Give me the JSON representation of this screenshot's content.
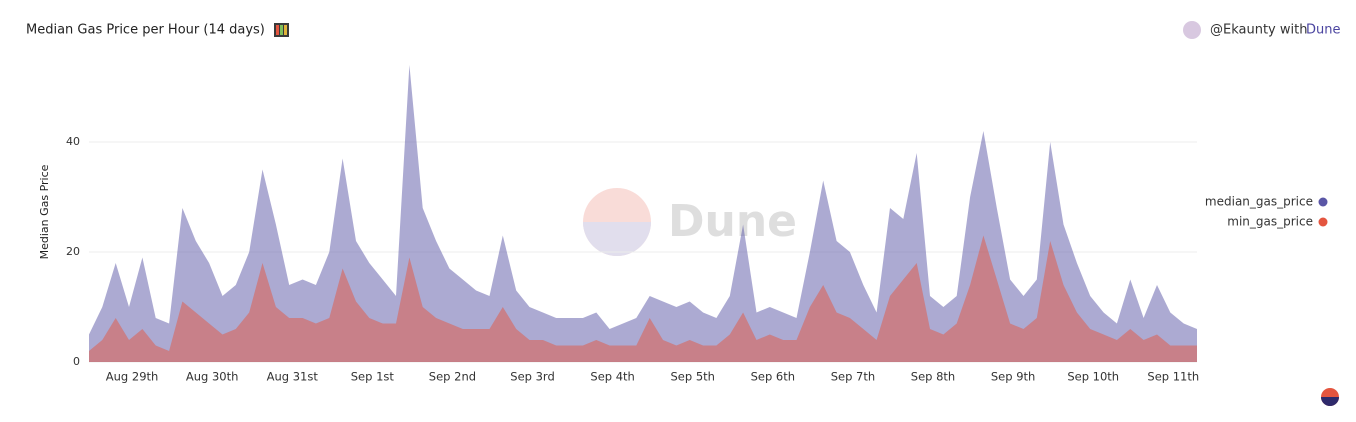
{
  "chart_data": {
    "type": "area",
    "title": "Median Gas Price per Hour (14 days)",
    "author": "@Ekaunty with",
    "brand": "Dune",
    "watermark": "Dune",
    "y_label": "Median Gas Price",
    "categories": [
      null,
      null,
      null,
      "Aug 29th",
      null,
      null,
      null,
      null,
      null,
      "Aug 30th",
      null,
      null,
      null,
      null,
      null,
      "Aug 31st",
      null,
      null,
      null,
      null,
      null,
      "Sep 1st",
      null,
      null,
      null,
      null,
      null,
      "Sep 2nd",
      null,
      null,
      null,
      null,
      null,
      "Sep 3rd",
      null,
      null,
      null,
      null,
      null,
      "Sep 4th",
      null,
      null,
      null,
      null,
      null,
      "Sep 5th",
      null,
      null,
      null,
      null,
      null,
      "Sep 6th",
      null,
      null,
      null,
      null,
      null,
      "Sep 7th",
      null,
      null,
      null,
      null,
      null,
      "Sep 8th",
      null,
      null,
      null,
      null,
      null,
      "Sep 9th",
      null,
      null,
      null,
      null,
      null,
      "Sep 10th",
      null,
      null,
      null,
      null,
      null,
      "Sep 11th",
      null,
      null
    ],
    "series": [
      {
        "name": "median_gas_price",
        "color": "#5a56a6",
        "values": [
          5,
          10,
          18,
          10,
          19,
          8,
          7,
          28,
          22,
          18,
          12,
          14,
          20,
          35,
          25,
          14,
          15,
          14,
          20,
          37,
          22,
          18,
          15,
          12,
          54,
          28,
          22,
          17,
          15,
          13,
          12,
          23,
          13,
          10,
          9,
          8,
          8,
          8,
          9,
          6,
          7,
          8,
          12,
          11,
          10,
          11,
          9,
          8,
          12,
          25,
          9,
          10,
          9,
          8,
          20,
          33,
          22,
          20,
          14,
          9,
          28,
          26,
          38,
          12,
          10,
          12,
          30,
          42,
          28,
          15,
          12,
          15,
          40,
          25,
          18,
          12,
          9,
          7,
          15,
          8,
          14,
          9,
          7,
          6
        ]
      },
      {
        "name": "min_gas_price",
        "color": "#e4553f",
        "values": [
          2,
          4,
          8,
          4,
          6,
          3,
          2,
          11,
          9,
          7,
          5,
          6,
          9,
          18,
          10,
          8,
          8,
          7,
          8,
          17,
          11,
          8,
          7,
          7,
          19,
          10,
          8,
          7,
          6,
          6,
          6,
          10,
          6,
          4,
          4,
          3,
          3,
          3,
          4,
          3,
          3,
          3,
          8,
          4,
          3,
          4,
          3,
          3,
          5,
          9,
          4,
          5,
          4,
          4,
          10,
          14,
          9,
          8,
          6,
          4,
          12,
          15,
          18,
          6,
          5,
          7,
          14,
          23,
          15,
          7,
          6,
          8,
          22,
          14,
          9,
          6,
          5,
          4,
          6,
          4,
          5,
          3,
          3,
          3
        ]
      }
    ],
    "ylim": [
      0,
      55
    ],
    "yticks": [
      0,
      20,
      40
    ],
    "grid": true,
    "legend": "right"
  }
}
